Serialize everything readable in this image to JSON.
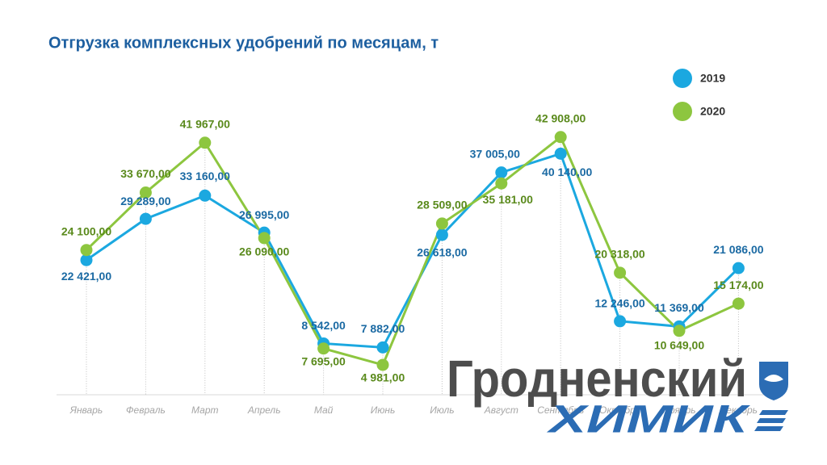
{
  "chart_data": {
    "type": "line",
    "title": "Отгрузка комплексных удобрений по месяцам, т",
    "categories": [
      "Январь",
      "Февраль",
      "Март",
      "Апрель",
      "Май",
      "Июнь",
      "Июль",
      "Август",
      "Сентябрь",
      "Октябрь",
      "Ноябрь",
      "Декабрь"
    ],
    "series": [
      {
        "name": "2019",
        "color": "#1ba8e0",
        "values": [
          22421,
          29289,
          33160,
          26995,
          8542,
          7882,
          26618,
          37005,
          40140,
          12246,
          11369,
          21086
        ],
        "value_labels": [
          "22 421,00",
          "29 289,00",
          "33 160,00",
          "26 995,00",
          "8 542,00",
          "7 882,00",
          "26 618,00",
          "37 005,00",
          "40 140,00",
          "12 246,00",
          "11 369,00",
          "21 086,00"
        ]
      },
      {
        "name": "2020",
        "color": "#8dc63f",
        "values": [
          24100,
          33670,
          41967,
          26090,
          7695,
          4981,
          28509,
          35181,
          42908,
          20318,
          10649,
          15174
        ],
        "value_labels": [
          "24 100,00",
          "33 670,00",
          "41 967,00",
          "26 090,00",
          "7 695,00",
          "4 981,00",
          "28 509,00",
          "35 181,00",
          "42 908,00",
          "20 318,00",
          "10 649,00",
          "15 174,00"
        ]
      }
    ],
    "ylim": [
      0,
      50000
    ]
  },
  "logo": {
    "line1": "Гродненский",
    "line2": "ХИМИК"
  }
}
